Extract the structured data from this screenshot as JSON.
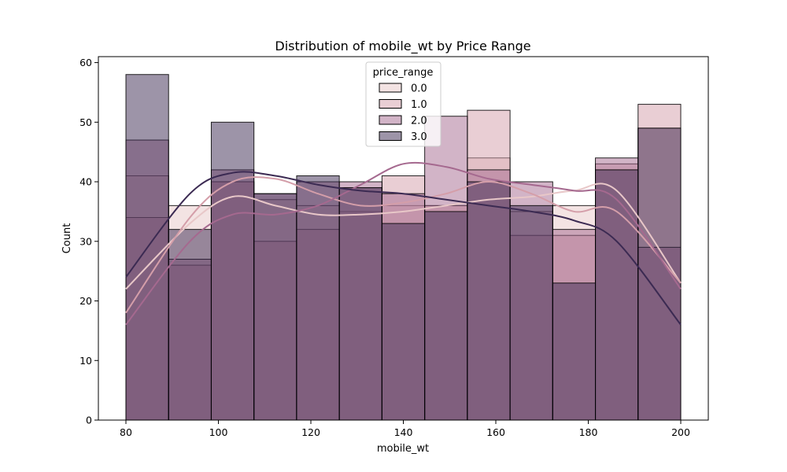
{
  "chart_data": {
    "type": "histogram",
    "title": "Distribution of mobile_wt by Price Range",
    "xlabel": "mobile_wt",
    "ylabel": "Count",
    "xlim": [
      80,
      200
    ],
    "ylim": [
      0,
      61
    ],
    "xticks": [
      80,
      100,
      120,
      140,
      160,
      180,
      200
    ],
    "yticks": [
      0,
      10,
      20,
      30,
      40,
      50,
      60
    ],
    "bin_edges": [
      80,
      89.23,
      98.46,
      107.69,
      116.92,
      126.15,
      135.38,
      144.62,
      153.85,
      163.08,
      172.31,
      181.54,
      190.77,
      200
    ],
    "legend": {
      "title": "price_range",
      "placement": "top-center"
    },
    "series": [
      {
        "name": "0.0",
        "color": "#e8c7c8",
        "counts": [
          41,
          36,
          40,
          37,
          36,
          35,
          36,
          36,
          44,
          35,
          36,
          42,
          49
        ],
        "kde": [
          22,
          33,
          37.5,
          36,
          34.5,
          34.5,
          35,
          36,
          37,
          37.5,
          38.5,
          38.5,
          23
        ]
      },
      {
        "name": "1.0",
        "color": "#d49ea9",
        "counts": [
          34,
          26,
          40,
          30,
          32,
          39,
          41,
          36,
          52,
          31,
          31,
          43,
          53
        ],
        "kde": [
          18,
          34,
          40,
          40.5,
          38,
          36,
          36.5,
          38,
          40,
          38,
          35,
          35,
          23
        ]
      },
      {
        "name": "2.0",
        "color": "#a5698f",
        "counts": [
          47,
          27,
          42,
          38,
          40,
          40,
          38,
          51,
          42,
          40,
          32,
          44,
          29
        ],
        "kde": [
          16,
          30,
          34.5,
          34.5,
          36,
          39.5,
          43,
          42.5,
          40.5,
          39.5,
          38.5,
          37,
          22
        ]
      },
      {
        "name": "3.0",
        "color": "#3b2a52",
        "counts": [
          58,
          32,
          50,
          38,
          41,
          39,
          33,
          35,
          40,
          36,
          23,
          42,
          49
        ],
        "kde": [
          24,
          38,
          41.5,
          41,
          39.5,
          38.5,
          38,
          37,
          36,
          35,
          33.5,
          30,
          16
        ]
      }
    ]
  }
}
